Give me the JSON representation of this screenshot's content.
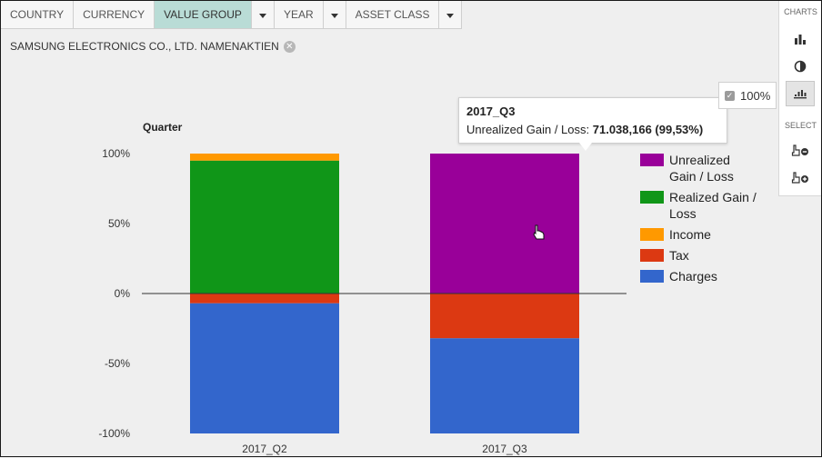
{
  "filters": {
    "tabs": [
      {
        "label": "COUNTRY",
        "active": false,
        "dropdown": false
      },
      {
        "label": "CURRENCY",
        "active": false,
        "dropdown": false
      },
      {
        "label": "VALUE GROUP",
        "active": true,
        "dropdown": true
      },
      {
        "label": "YEAR",
        "active": false,
        "dropdown": true
      },
      {
        "label": "ASSET CLASS",
        "active": false,
        "dropdown": true
      }
    ],
    "chip_label": "SAMSUNG ELECTRONICS CO., LTD. NAMENAKTIEN"
  },
  "panel": {
    "charts_title": "CHARTS",
    "select_title": "SELECT",
    "buttons": [
      "bar-chart-icon",
      "pie-chart-icon",
      "stacked-chart-icon"
    ],
    "select_buttons": [
      "select-remove-icon",
      "select-add-icon"
    ],
    "percent_label": "100%",
    "percent_checked": true
  },
  "tooltip": {
    "title": "2017_Q3",
    "label": "Unrealized Gain / Loss:",
    "value": "71.038,166 (99,53%)"
  },
  "chart_data": {
    "type": "bar",
    "stacked": true,
    "normalized_percent": true,
    "ylabel": "Quarter",
    "categories": [
      "2017_Q2",
      "2017_Q3"
    ],
    "yticks": [
      "100%",
      "50%",
      "0%",
      "-50%",
      "-100%"
    ],
    "ylim": [
      -100,
      100
    ],
    "legend_position": "right",
    "series": [
      {
        "name": "Unrealized Gain / Loss",
        "color": "#990099",
        "values": [
          0,
          100
        ]
      },
      {
        "name": "Realized Gain / Loss",
        "color": "#109618",
        "values": [
          95,
          0
        ]
      },
      {
        "name": "Income",
        "color": "#ff9900",
        "values": [
          5,
          0
        ]
      },
      {
        "name": "Tax",
        "color": "#dc3912",
        "values": [
          -7,
          -32
        ]
      },
      {
        "name": "Charges",
        "color": "#3366cc",
        "values": [
          -93,
          -68
        ]
      }
    ],
    "legend": [
      {
        "lines": [
          "Unrealized",
          "Gain / Loss"
        ],
        "color": "#990099"
      },
      {
        "lines": [
          "Realized Gain /",
          "Loss"
        ],
        "color": "#109618"
      },
      {
        "lines": [
          "Income"
        ],
        "color": "#ff9900"
      },
      {
        "lines": [
          "Tax"
        ],
        "color": "#dc3912"
      },
      {
        "lines": [
          "Charges"
        ],
        "color": "#3366cc"
      }
    ]
  }
}
